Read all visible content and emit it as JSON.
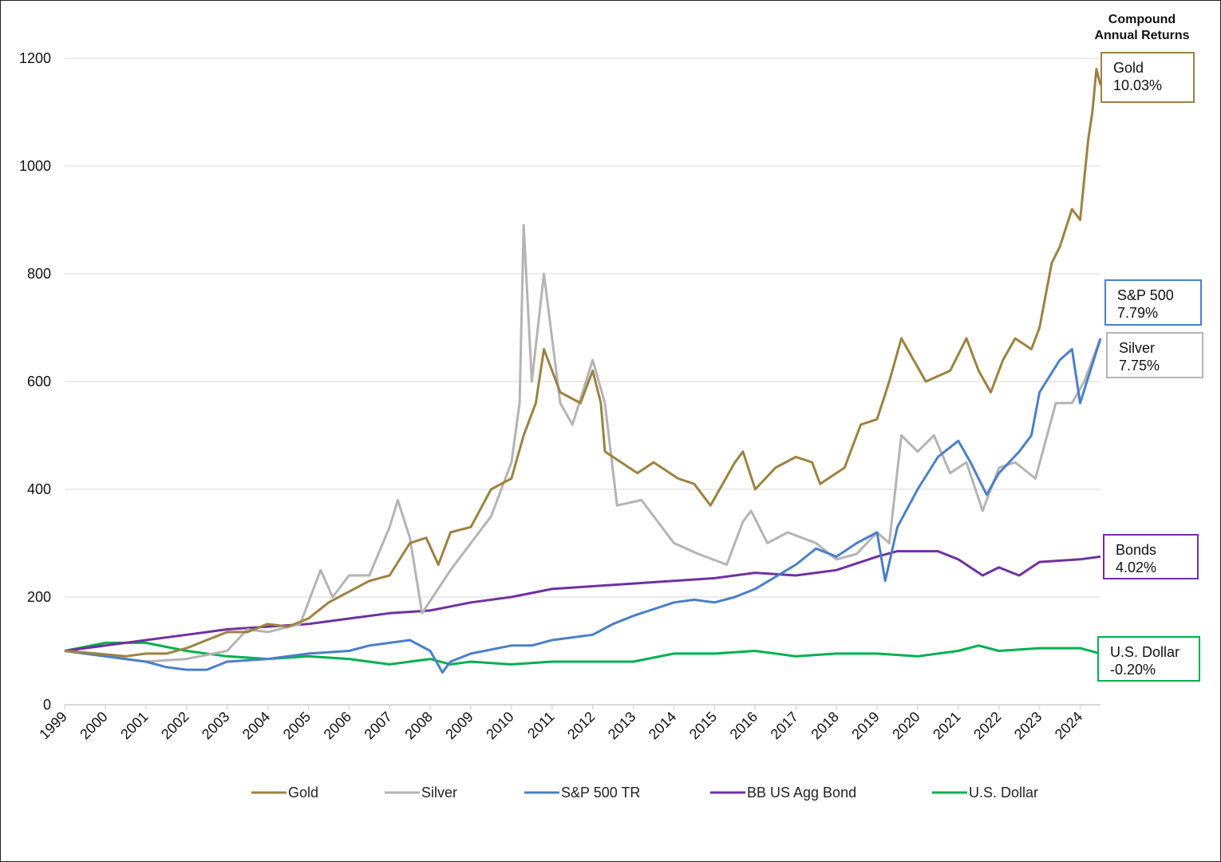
{
  "chart_data": {
    "type": "line",
    "title": "",
    "header": [
      "Compound",
      "Annual Returns"
    ],
    "xlabel": "",
    "ylabel": "",
    "ylim": [
      0,
      1200
    ],
    "xlim": [
      1999,
      2024.5
    ],
    "yticks": [
      0,
      200,
      400,
      600,
      800,
      1000,
      1200
    ],
    "xticks": [
      "1999",
      "2000",
      "2001",
      "2002",
      "2003",
      "2004",
      "2005",
      "2006",
      "2007",
      "2008",
      "2009",
      "2010",
      "2011",
      "2012",
      "2013",
      "2014",
      "2015",
      "2016",
      "2017",
      "2018",
      "2019",
      "2020",
      "2021",
      "2022",
      "2023",
      "2024"
    ],
    "grid": true,
    "legend_position": "bottom",
    "series": [
      {
        "name": "Gold",
        "color": "#9c8240",
        "end_label": [
          "Gold",
          "10.03%"
        ],
        "x": [
          1999,
          1999.8,
          2000.5,
          2001,
          2001.5,
          2002,
          2002.5,
          2003,
          2003.5,
          2004,
          2004.5,
          2005,
          2005.5,
          2006,
          2006.5,
          2007,
          2007.5,
          2007.9,
          2008.2,
          2008.5,
          2009,
          2009.5,
          2010,
          2010.3,
          2010.6,
          2010.8,
          2011.2,
          2011.7,
          2012,
          2012.2,
          2012.3,
          2013.1,
          2013.5,
          2014.1,
          2014.5,
          2014.9,
          2015.5,
          2015.7,
          2016,
          2016.5,
          2017,
          2017.4,
          2017.6,
          2018.2,
          2018.6,
          2019,
          2019.3,
          2019.6,
          2019.9,
          2020.2,
          2020.8,
          2021.2,
          2021.5,
          2021.8,
          2022.1,
          2022.4,
          2022.8,
          2023,
          2023.3,
          2023.5,
          2023.8,
          2024,
          2024.2,
          2024.3,
          2024.4,
          2024.5
        ],
        "y": [
          100,
          95,
          90,
          95,
          95,
          105,
          120,
          135,
          135,
          150,
          145,
          160,
          190,
          210,
          230,
          240,
          300,
          310,
          260,
          320,
          330,
          400,
          420,
          500,
          560,
          660,
          580,
          560,
          620,
          560,
          470,
          430,
          450,
          420,
          410,
          370,
          450,
          470,
          400,
          440,
          460,
          450,
          410,
          440,
          520,
          530,
          600,
          680,
          640,
          600,
          620,
          680,
          620,
          580,
          640,
          680,
          660,
          700,
          820,
          850,
          920,
          900,
          1050,
          1100,
          1180,
          1150
        ]
      },
      {
        "name": "Silver",
        "color": "#b4b4b4",
        "end_label": [
          "Silver",
          "7.75%"
        ],
        "x": [
          1999,
          2000,
          2001,
          2002,
          2003,
          2003.5,
          2004,
          2004.8,
          2005.3,
          2005.6,
          2006,
          2006.5,
          2007,
          2007.2,
          2007.5,
          2007.8,
          2008.5,
          2009,
          2009.5,
          2010,
          2010.2,
          2010.3,
          2010.5,
          2010.8,
          2011.2,
          2011.5,
          2012,
          2012.3,
          2012.6,
          2013.2,
          2013.6,
          2014,
          2014.6,
          2015.3,
          2015.7,
          2015.9,
          2016.3,
          2016.8,
          2017.5,
          2018,
          2018.5,
          2019,
          2019.3,
          2019.6,
          2020,
          2020.4,
          2020.8,
          2021.2,
          2021.6,
          2022,
          2022.4,
          2022.9,
          2023.4,
          2023.8,
          2024.1,
          2024.5
        ],
        "y": [
          100,
          90,
          80,
          85,
          100,
          140,
          135,
          150,
          250,
          200,
          240,
          240,
          330,
          380,
          310,
          170,
          250,
          300,
          350,
          450,
          560,
          890,
          600,
          800,
          560,
          520,
          640,
          560,
          370,
          380,
          340,
          300,
          280,
          260,
          340,
          360,
          300,
          320,
          300,
          270,
          280,
          320,
          300,
          500,
          470,
          500,
          430,
          450,
          360,
          440,
          450,
          420,
          560,
          560,
          600,
          680
        ]
      },
      {
        "name": "S&P 500 TR",
        "color": "#4a7fc9",
        "end_label": [
          "S&P 500",
          "7.79%"
        ],
        "x": [
          1999,
          2000,
          2000.5,
          2001,
          2001.5,
          2002,
          2002.5,
          2003,
          2004,
          2005,
          2006,
          2006.5,
          2007,
          2007.5,
          2008,
          2008.3,
          2008.5,
          2009,
          2010,
          2010.5,
          2011,
          2012,
          2012.5,
          2013,
          2014,
          2014.5,
          2015,
          2015.5,
          2016,
          2017,
          2017.5,
          2018,
          2018.5,
          2019,
          2019.2,
          2019.5,
          2020,
          2020.5,
          2021,
          2021.3,
          2021.7,
          2022,
          2022.5,
          2022.8,
          2023,
          2023.5,
          2023.8,
          2024,
          2024.5
        ],
        "y": [
          100,
          90,
          85,
          80,
          70,
          65,
          65,
          80,
          85,
          95,
          100,
          110,
          115,
          120,
          100,
          60,
          80,
          95,
          110,
          110,
          120,
          130,
          150,
          165,
          190,
          195,
          190,
          200,
          215,
          260,
          290,
          275,
          300,
          320,
          230,
          330,
          400,
          460,
          490,
          450,
          390,
          430,
          470,
          500,
          580,
          640,
          660,
          560,
          680
        ]
      },
      {
        "name": "BB US Agg Bond",
        "color": "#7030a0",
        "end_label": [
          "Bonds",
          "4.02%"
        ],
        "x": [
          1999,
          2000,
          2001,
          2002,
          2003,
          2004,
          2005,
          2006,
          2007,
          2008,
          2009,
          2010,
          2011,
          2012,
          2013,
          2014,
          2015,
          2016,
          2017,
          2018,
          2019,
          2019.5,
          2020,
          2020.5,
          2021,
          2021.6,
          2022,
          2022.5,
          2023,
          2024,
          2024.5
        ],
        "y": [
          100,
          110,
          120,
          130,
          140,
          145,
          150,
          160,
          170,
          175,
          190,
          200,
          215,
          220,
          225,
          230,
          235,
          245,
          240,
          250,
          275,
          285,
          285,
          285,
          270,
          240,
          255,
          240,
          265,
          270,
          275
        ]
      },
      {
        "name": "U.S. Dollar",
        "color": "#00b050",
        "end_label": [
          "U.S. Dollar",
          "-0.20%"
        ],
        "x": [
          1999,
          2000,
          2001,
          2002,
          2003,
          2004,
          2005,
          2006,
          2007,
          2008,
          2008.5,
          2009,
          2010,
          2011,
          2012,
          2013,
          2014,
          2015,
          2016,
          2017,
          2018,
          2019,
          2020,
          2021,
          2021.5,
          2022,
          2023,
          2024,
          2024.5
        ],
        "y": [
          100,
          115,
          115,
          100,
          90,
          85,
          90,
          85,
          75,
          85,
          75,
          80,
          75,
          80,
          80,
          80,
          95,
          95,
          100,
          90,
          95,
          95,
          90,
          100,
          110,
          100,
          105,
          105,
          95
        ]
      }
    ]
  }
}
